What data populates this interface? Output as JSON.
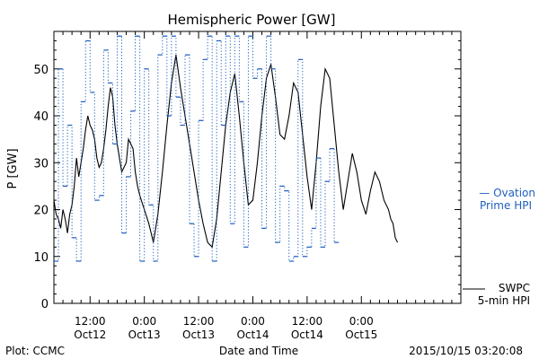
{
  "chart_data": {
    "type": "line",
    "title": "Hemispheric Power [GW]",
    "ylabel": "P [GW]",
    "xlabel": "Date and Time",
    "ylim": [
      0,
      58
    ],
    "xlim": [
      0,
      90
    ],
    "x_unit": "hours since 2015/10/11 16:00",
    "yticks": [
      0,
      10,
      20,
      30,
      40,
      50
    ],
    "xticks": [
      {
        "x": 8,
        "time": "12:00",
        "date": "Oct12"
      },
      {
        "x": 20,
        "time": "0:00",
        "date": "Oct13"
      },
      {
        "x": 32,
        "time": "12:00",
        "date": "Oct13"
      },
      {
        "x": 44,
        "time": "0:00",
        "date": "Oct14"
      },
      {
        "x": 56,
        "time": "12:00",
        "date": "Oct14"
      },
      {
        "x": 68,
        "time": "0:00",
        "date": "Oct15"
      }
    ],
    "series": [
      {
        "name": "SWPC 5-min HPI",
        "style": "solid",
        "color": "#000000",
        "points": [
          [
            0,
            22
          ],
          [
            0.5,
            19
          ],
          [
            1,
            18
          ],
          [
            1.5,
            16
          ],
          [
            2,
            20
          ],
          [
            2.5,
            18
          ],
          [
            3,
            15
          ],
          [
            3.5,
            19
          ],
          [
            4,
            21
          ],
          [
            4.5,
            25
          ],
          [
            5,
            31
          ],
          [
            5.5,
            27
          ],
          [
            6,
            30
          ],
          [
            6.5,
            33
          ],
          [
            7,
            37
          ],
          [
            7.5,
            40
          ],
          [
            8,
            38
          ],
          [
            8.5,
            37
          ],
          [
            9,
            35
          ],
          [
            9.5,
            31
          ],
          [
            10,
            29
          ],
          [
            10.5,
            30
          ],
          [
            11,
            33
          ],
          [
            11.5,
            37
          ],
          [
            12,
            42
          ],
          [
            12.5,
            46
          ],
          [
            13,
            44
          ],
          [
            13.5,
            38
          ],
          [
            14,
            34
          ],
          [
            15,
            28
          ],
          [
            16,
            30
          ],
          [
            16.5,
            35
          ],
          [
            17,
            34
          ],
          [
            17.5,
            33
          ],
          [
            18,
            28
          ],
          [
            18.5,
            25
          ],
          [
            19,
            23
          ],
          [
            20,
            20
          ],
          [
            21,
            17
          ],
          [
            22,
            13
          ],
          [
            23,
            19
          ],
          [
            24,
            28
          ],
          [
            25,
            38
          ],
          [
            26,
            47
          ],
          [
            27,
            53
          ],
          [
            28,
            46
          ],
          [
            29,
            40
          ],
          [
            30,
            34
          ],
          [
            31,
            28
          ],
          [
            32,
            22
          ],
          [
            33,
            17
          ],
          [
            34,
            13
          ],
          [
            35,
            12
          ],
          [
            36,
            18
          ],
          [
            37,
            28
          ],
          [
            38,
            38
          ],
          [
            39,
            45
          ],
          [
            40,
            49
          ],
          [
            41,
            40
          ],
          [
            42,
            30
          ],
          [
            43,
            21
          ],
          [
            44,
            22
          ],
          [
            45,
            30
          ],
          [
            46,
            40
          ],
          [
            47,
            48
          ],
          [
            48,
            51
          ],
          [
            49,
            44
          ],
          [
            50,
            36
          ],
          [
            51,
            35
          ],
          [
            52,
            40
          ],
          [
            53,
            47
          ],
          [
            54,
            45
          ],
          [
            55,
            36
          ],
          [
            56,
            27
          ],
          [
            57,
            20
          ],
          [
            58,
            30
          ],
          [
            59,
            42
          ],
          [
            60,
            50
          ],
          [
            61,
            48
          ],
          [
            62,
            38
          ],
          [
            63,
            28
          ],
          [
            64,
            20
          ],
          [
            65,
            26
          ],
          [
            66,
            32
          ],
          [
            67,
            28
          ],
          [
            68,
            22
          ],
          [
            69,
            19
          ],
          [
            70,
            24
          ],
          [
            71,
            28
          ],
          [
            72,
            26
          ],
          [
            73,
            22
          ],
          [
            74,
            20
          ],
          [
            74.5,
            18
          ],
          [
            75,
            17
          ],
          [
            75.5,
            14
          ],
          [
            76,
            13
          ]
        ]
      },
      {
        "name": "Ovation Prime HPI",
        "style": "dotted-step",
        "color": "#1f5fbf",
        "points": [
          [
            0,
            9
          ],
          [
            1,
            50
          ],
          [
            2,
            25
          ],
          [
            3,
            38
          ],
          [
            4,
            14
          ],
          [
            5,
            9
          ],
          [
            6,
            43
          ],
          [
            7,
            56
          ],
          [
            8,
            45
          ],
          [
            9,
            22
          ],
          [
            10,
            23
          ],
          [
            11,
            54
          ],
          [
            12,
            47
          ],
          [
            13,
            34
          ],
          [
            14,
            57
          ],
          [
            15,
            15
          ],
          [
            16,
            27
          ],
          [
            17,
            41
          ],
          [
            18,
            57
          ],
          [
            19,
            9
          ],
          [
            20,
            50
          ],
          [
            21,
            21
          ],
          [
            22,
            9
          ],
          [
            23,
            53
          ],
          [
            24,
            57
          ],
          [
            25,
            40
          ],
          [
            26,
            57
          ],
          [
            27,
            44
          ],
          [
            28,
            38
          ],
          [
            29,
            53
          ],
          [
            30,
            17
          ],
          [
            31,
            10
          ],
          [
            32,
            39
          ],
          [
            33,
            52
          ],
          [
            34,
            57
          ],
          [
            35,
            9
          ],
          [
            36,
            56
          ],
          [
            37,
            38
          ],
          [
            38,
            57
          ],
          [
            39,
            17
          ],
          [
            40,
            57
          ],
          [
            41,
            43
          ],
          [
            42,
            12
          ],
          [
            43,
            57
          ],
          [
            44,
            48
          ],
          [
            45,
            50
          ],
          [
            46,
            16
          ],
          [
            47,
            57
          ],
          [
            48,
            50
          ],
          [
            49,
            13
          ],
          [
            50,
            25
          ],
          [
            51,
            24
          ],
          [
            52,
            9
          ],
          [
            53,
            10
          ],
          [
            54,
            52
          ],
          [
            55,
            10
          ],
          [
            56,
            12
          ],
          [
            57,
            16
          ],
          [
            58,
            31
          ],
          [
            59,
            12
          ],
          [
            60,
            26
          ],
          [
            61,
            33
          ],
          [
            62,
            13
          ]
        ]
      }
    ],
    "legend": [
      {
        "lines": [
          "— Ovation",
          "Prime HPI"
        ],
        "color": "#1f5fbf"
      },
      {
        "lines": [
          "SWPC",
          "5-min HPI"
        ],
        "color": "#000000"
      }
    ]
  },
  "footer": {
    "left": "Plot: CCMC",
    "center": "Date and Time",
    "right": "2015/10/15 03:20:08"
  }
}
